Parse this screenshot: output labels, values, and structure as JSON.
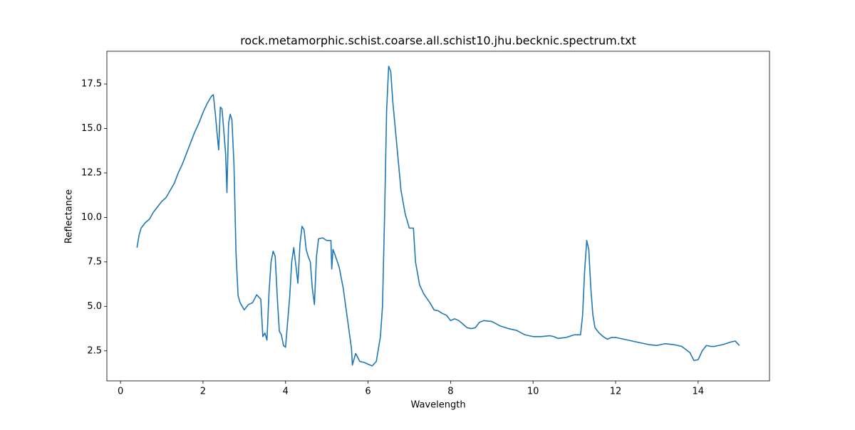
{
  "chart_data": {
    "type": "line",
    "title": "rock.metamorphic.schist.coarse.all.schist10.jhu.becknic.spectrum.txt",
    "xlabel": "Wavelength",
    "ylabel": "Reflectance",
    "xlim": [
      -0.33,
      15.73
    ],
    "ylim": [
      0.81,
      19.34
    ],
    "xticks": [
      0,
      2,
      4,
      6,
      8,
      10,
      12,
      14
    ],
    "yticks": [
      2.5,
      {
        "value": 5,
        "label": "5.0"
      },
      7.5,
      {
        "value": 10,
        "label": "10.0"
      },
      12.5,
      {
        "value": 15,
        "label": "15.0"
      },
      17.5
    ],
    "grid": false,
    "series": [
      {
        "color": "#1f77b4",
        "x": [
          0.4,
          0.45,
          0.5,
          0.6,
          0.7,
          0.8,
          0.9,
          1.0,
          1.1,
          1.2,
          1.3,
          1.4,
          1.5,
          1.6,
          1.7,
          1.8,
          1.9,
          2.0,
          2.1,
          2.2,
          2.25,
          2.3,
          2.35,
          2.38,
          2.42,
          2.46,
          2.5,
          2.55,
          2.58,
          2.62,
          2.66,
          2.7,
          2.75,
          2.8,
          2.85,
          2.9,
          3.0,
          3.1,
          3.2,
          3.3,
          3.4,
          3.45,
          3.5,
          3.55,
          3.6,
          3.65,
          3.7,
          3.75,
          3.8,
          3.85,
          3.9,
          3.95,
          4.0,
          4.1,
          4.15,
          4.2,
          4.25,
          4.3,
          4.35,
          4.4,
          4.45,
          4.5,
          4.55,
          4.6,
          4.65,
          4.7,
          4.75,
          4.8,
          4.9,
          5.0,
          5.1,
          5.12,
          5.15,
          5.2,
          5.3,
          5.4,
          5.5,
          5.6,
          5.62,
          5.7,
          5.8,
          5.9,
          6.0,
          6.1,
          6.2,
          6.3,
          6.35,
          6.4,
          6.45,
          6.5,
          6.55,
          6.6,
          6.7,
          6.8,
          6.9,
          7.0,
          7.1,
          7.15,
          7.25,
          7.35,
          7.5,
          7.6,
          7.7,
          7.8,
          7.9,
          8.0,
          8.1,
          8.2,
          8.3,
          8.4,
          8.5,
          8.6,
          8.7,
          8.8,
          9.0,
          9.2,
          9.4,
          9.6,
          9.8,
          10.0,
          10.2,
          10.4,
          10.5,
          10.6,
          10.8,
          11.0,
          11.15,
          11.2,
          11.25,
          11.3,
          11.35,
          11.4,
          11.45,
          11.5,
          11.6,
          11.7,
          11.8,
          11.9,
          12.0,
          12.2,
          12.4,
          12.6,
          12.8,
          13.0,
          13.2,
          13.4,
          13.6,
          13.8,
          13.9,
          14.0,
          14.1,
          14.2,
          14.3,
          14.4,
          14.6,
          14.8,
          14.9,
          15.0
        ],
        "values": [
          8.3,
          9.0,
          9.4,
          9.7,
          9.9,
          10.3,
          10.6,
          10.9,
          11.1,
          11.5,
          11.9,
          12.5,
          13.0,
          13.6,
          14.2,
          14.8,
          15.3,
          15.9,
          16.4,
          16.8,
          16.9,
          15.8,
          14.5,
          13.8,
          16.2,
          16.1,
          15.0,
          13.5,
          11.4,
          15.3,
          15.8,
          15.5,
          13.0,
          8.0,
          5.6,
          5.2,
          4.8,
          5.1,
          5.2,
          5.65,
          5.4,
          3.3,
          3.5,
          3.1,
          5.8,
          7.5,
          8.1,
          7.8,
          5.5,
          3.6,
          3.4,
          2.8,
          2.7,
          5.5,
          7.5,
          8.3,
          7.3,
          6.3,
          8.5,
          9.5,
          9.3,
          8.2,
          7.8,
          7.5,
          6.0,
          5.1,
          7.8,
          8.8,
          8.85,
          8.7,
          8.7,
          7.1,
          8.2,
          7.9,
          7.2,
          6.0,
          4.3,
          2.6,
          1.7,
          2.35,
          1.9,
          1.85,
          1.75,
          1.65,
          1.9,
          3.3,
          5.0,
          10.0,
          16.0,
          18.5,
          18.2,
          16.5,
          14.0,
          11.5,
          10.2,
          9.4,
          9.4,
          7.5,
          6.2,
          5.7,
          5.2,
          4.8,
          4.75,
          4.6,
          4.5,
          4.2,
          4.3,
          4.2,
          4.0,
          3.8,
          3.75,
          3.8,
          4.1,
          4.2,
          4.15,
          3.9,
          3.75,
          3.65,
          3.4,
          3.3,
          3.3,
          3.35,
          3.3,
          3.2,
          3.25,
          3.4,
          3.4,
          4.5,
          7.0,
          8.7,
          8.2,
          6.0,
          4.5,
          3.8,
          3.5,
          3.3,
          3.15,
          3.25,
          3.25,
          3.15,
          3.05,
          2.95,
          2.85,
          2.8,
          2.9,
          2.85,
          2.75,
          2.4,
          1.95,
          2.0,
          2.5,
          2.8,
          2.75,
          2.75,
          2.85,
          3.0,
          3.05,
          2.8
        ]
      }
    ]
  }
}
